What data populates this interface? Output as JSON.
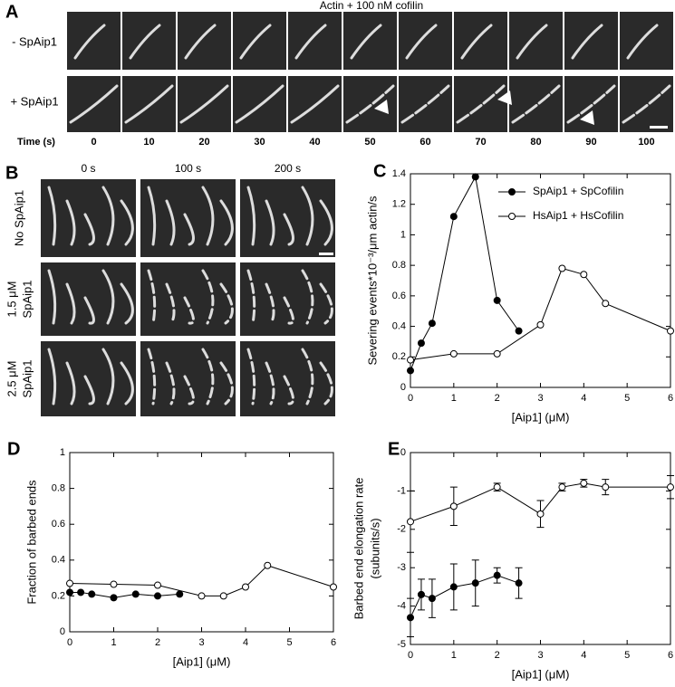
{
  "panel_a": {
    "letter": "A",
    "title": "Actin + 100 nM cofilin",
    "rows": [
      "- SpAip1",
      "+ SpAip1"
    ],
    "time_label": "Time (s)",
    "times": [
      0,
      10,
      20,
      30,
      40,
      50,
      60,
      70,
      80,
      90,
      100
    ]
  },
  "panel_b": {
    "letter": "B",
    "columns": [
      "0 s",
      "100 s",
      "200 s"
    ],
    "rows": [
      [
        "No SpAip1"
      ],
      [
        "1.5 μM",
        "SpAip1"
      ],
      [
        "2.5 μM",
        "SpAip1"
      ]
    ]
  },
  "chart_data": [
    {
      "type": "line",
      "letter": "C",
      "xlabel": "[Aip1] (μM)",
      "ylabel": [
        "Severing events*10⁻³/μm actin/s"
      ],
      "xlim": [
        0,
        6
      ],
      "xticks": [
        0,
        1,
        2,
        3,
        4,
        5,
        6
      ],
      "ylim": [
        0,
        1.4
      ],
      "yticks": [
        0,
        0.2,
        0.4,
        0.6,
        0.8,
        1,
        1.2,
        1.4
      ],
      "legend": "upper right",
      "series": [
        {
          "name": "SpAip1 + SpCofilin",
          "color": "#000000",
          "marker_fill": "#000000",
          "x": [
            0,
            0.25,
            0.5,
            1,
            1.5,
            2,
            2.5
          ],
          "values": [
            0.11,
            0.29,
            0.42,
            1.12,
            1.38,
            0.57,
            0.37
          ]
        },
        {
          "name": "HsAip1 + HsCofilin",
          "color": "#000000",
          "marker_fill": "#ffffff",
          "x": [
            0,
            1,
            2,
            3,
            3.5,
            4,
            4.5,
            6
          ],
          "values": [
            0.18,
            0.22,
            0.22,
            0.41,
            0.78,
            0.74,
            0.55,
            0.37
          ]
        }
      ]
    },
    {
      "type": "line",
      "letter": "D",
      "xlabel": "[Aip1] (μM)",
      "ylabel": [
        "Fraction of barbed ends"
      ],
      "xlim": [
        0,
        6
      ],
      "xticks": [
        0,
        1,
        2,
        3,
        4,
        5,
        6
      ],
      "ylim": [
        0,
        1
      ],
      "yticks": [
        0,
        0.2,
        0.4,
        0.6,
        0.8,
        1
      ],
      "series": [
        {
          "color": "#000000",
          "marker_fill": "#ffffff",
          "x": [
            0,
            1,
            2,
            3,
            3.5,
            4,
            4.5,
            6
          ],
          "values": [
            0.27,
            0.265,
            0.26,
            0.2,
            0.2,
            0.25,
            0.37,
            0.25
          ]
        },
        {
          "color": "#000000",
          "marker_fill": "#000000",
          "x": [
            0,
            0.25,
            0.5,
            1,
            1.5,
            2,
            2.5
          ],
          "values": [
            0.22,
            0.22,
            0.21,
            0.19,
            0.21,
            0.2,
            0.21
          ]
        }
      ]
    },
    {
      "type": "errorline",
      "letter": "E",
      "xlabel": "[Aip1] (μM)",
      "ylabel": [
        "Barbed end elongation rate",
        "(subunits/s)"
      ],
      "xlim": [
        0,
        6
      ],
      "xticks": [
        0,
        1,
        2,
        3,
        4,
        5,
        6
      ],
      "ylim": [
        -5,
        0
      ],
      "yticks": [
        -5,
        -4,
        -3,
        -2,
        -1,
        0
      ],
      "series": [
        {
          "color": "#000000",
          "marker_fill": "#ffffff",
          "x": [
            0,
            1,
            2,
            3,
            3.5,
            4,
            4.5,
            6
          ],
          "values": [
            -1.8,
            -1.4,
            -0.9,
            -1.6,
            -0.9,
            -0.8,
            -0.9,
            -0.9
          ],
          "errors": [
            0.8,
            0.5,
            0.1,
            0.35,
            0.1,
            0.1,
            0.2,
            0.3
          ]
        },
        {
          "color": "#000000",
          "marker_fill": "#000000",
          "x": [
            0,
            0.25,
            0.5,
            1,
            1.5,
            2,
            2.5
          ],
          "values": [
            -4.3,
            -3.7,
            -3.8,
            -3.5,
            -3.4,
            -3.2,
            -3.4
          ],
          "errors": [
            0.5,
            0.4,
            0.5,
            0.6,
            0.6,
            0.2,
            0.4
          ]
        }
      ]
    }
  ]
}
